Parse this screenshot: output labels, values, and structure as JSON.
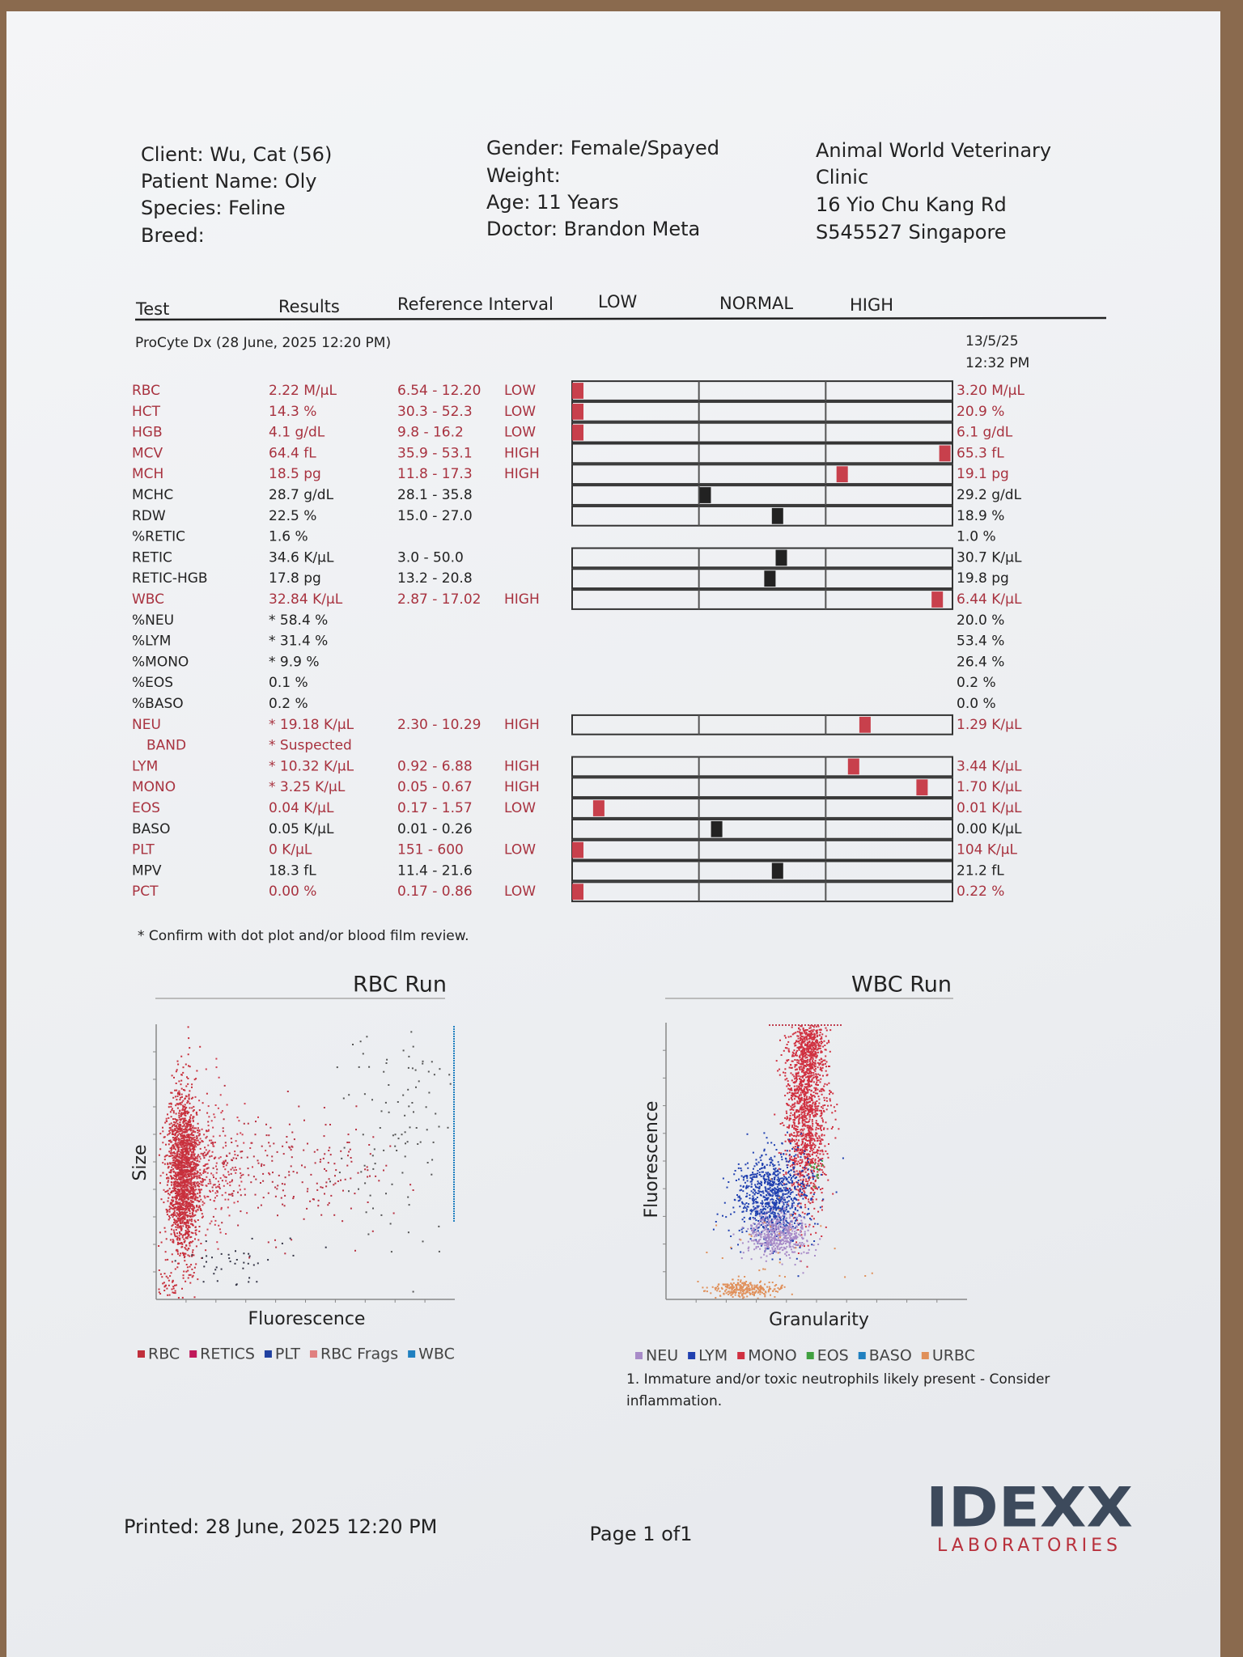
{
  "header": {
    "client": "Client: Wu, Cat (56)",
    "patient": "Patient Name: Oly",
    "species": "Species: Feline",
    "breed": "Breed:",
    "gender": "Gender: Female/Spayed",
    "weight": "Weight:",
    "age": "Age: 11 Years",
    "doctor": "Doctor: Brandon Meta",
    "clinic": [
      "Animal World Veterinary",
      "Clinic",
      "16 Yio Chu Kang Rd",
      "S545527 Singapore"
    ]
  },
  "table": {
    "columns": [
      "Test",
      "Results",
      "Reference Interval",
      "LOW",
      "NORMAL",
      "HIGH"
    ],
    "instrument": "ProCyte Dx (28 June, 2025 12:20 PM)",
    "previous_date": "13/5/25",
    "previous_time": "12:32 PM",
    "rows": [
      {
        "test": "RBC",
        "result": "2.22 M/µL",
        "reference": "6.54 - 12.20",
        "flag": "LOW",
        "previous": "3.20 M/µL",
        "color": "#a8323f"
      },
      {
        "test": "HCT",
        "result": "14.3 %",
        "reference": "30.3 - 52.3",
        "flag": "LOW",
        "previous": "20.9 %",
        "color": "#a8323f"
      },
      {
        "test": "HGB",
        "result": "4.1 g/dL",
        "reference": "9.8 - 16.2",
        "flag": "LOW",
        "previous": "6.1 g/dL",
        "color": "#a8323f"
      },
      {
        "test": "MCV",
        "result": "64.4 fL",
        "reference": "35.9 - 53.1",
        "flag": "HIGH",
        "previous": "65.3 fL",
        "color": "#a8323f"
      },
      {
        "test": "MCH",
        "result": "18.5 pg",
        "reference": "11.8 - 17.3",
        "flag": "HIGH",
        "previous": "19.1 pg",
        "color": "#a8323f"
      },
      {
        "test": "MCHC",
        "result": "28.7 g/dL",
        "reference": "28.1 - 35.8",
        "previous": "29.2 g/dL",
        "color": "#222222"
      },
      {
        "test": "RDW",
        "result": "22.5 %",
        "reference": "15.0 - 27.0",
        "previous": "18.9 %",
        "color": "#222222"
      },
      {
        "test": "%RETIC",
        "result": "1.6 %",
        "previous": "1.0 %",
        "color": "#222222"
      },
      {
        "test": "RETIC",
        "result": "34.6 K/µL",
        "reference": "3.0 - 50.0",
        "previous": "30.7 K/µL",
        "color": "#222222"
      },
      {
        "test": "RETIC-HGB",
        "result": "17.8 pg",
        "reference": "13.2 - 20.8",
        "previous": "19.8 pg",
        "color": "#222222"
      },
      {
        "test": "WBC",
        "result": "32.84 K/µL",
        "reference": "2.87 - 17.02",
        "flag": "HIGH",
        "previous": "6.44 K/µL",
        "color": "#a8323f"
      },
      {
        "test": "%NEU",
        "result": "* 58.4 %",
        "previous": "20.0 %",
        "color": "#222222"
      },
      {
        "test": "%LYM",
        "result": "* 31.4 %",
        "previous": "53.4 %",
        "color": "#222222"
      },
      {
        "test": "%MONO",
        "result": "* 9.9 %",
        "previous": "26.4 %",
        "color": "#222222"
      },
      {
        "test": "%EOS",
        "result": "0.1 %",
        "previous": "0.2 %",
        "color": "#222222"
      },
      {
        "test": "%BASO",
        "result": "0.2 %",
        "previous": "0.0 %",
        "color": "#222222"
      },
      {
        "test": "NEU",
        "result": "* 19.18 K/µL",
        "reference": "2.30 - 10.29",
        "flag": "HIGH",
        "previous": "1.29 K/µL",
        "color": "#a8323f"
      },
      {
        "test": "BAND",
        "result": "* Suspected",
        "color": "#a8323f"
      },
      {
        "test": "LYM",
        "result": "* 10.32 K/µL",
        "reference": "0.92 - 6.88",
        "flag": "HIGH",
        "previous": "3.44 K/µL",
        "color": "#a8323f"
      },
      {
        "test": "MONO",
        "result": "* 3.25 K/µL",
        "reference": "0.05 - 0.67",
        "flag": "HIGH",
        "previous": "1.70 K/µL",
        "color": "#a8323f"
      },
      {
        "test": "EOS",
        "result": "0.04 K/µL",
        "reference": "0.17 - 1.57",
        "flag": "LOW",
        "previous": "0.01 K/µL",
        "color": "#a8323f"
      },
      {
        "test": "BASO",
        "result": "0.05 K/µL",
        "reference": "0.01 - 0.26",
        "previous": "0.00 K/µL",
        "color": "#222222"
      },
      {
        "test": "PLT",
        "result": "0 K/µL",
        "reference": "151 - 600",
        "flag": "LOW",
        "previous": "104 K/µL",
        "color": "#a8323f"
      },
      {
        "test": "MPV",
        "result": "18.3 fL",
        "reference": "11.4 - 21.6",
        "previous": "21.2 fL",
        "color": "#222222"
      },
      {
        "test": "PCT",
        "result": "0.00 %",
        "reference": "0.17 - 0.86",
        "flag": "LOW",
        "previous": "0.22 %",
        "color": "#a8323f"
      }
    ]
  },
  "footnote": "* Confirm with dot plot and/or blood film review.",
  "rbc_run": {
    "title": "RBC Run",
    "x_label": "Fluorescence",
    "y_label": "Size",
    "legend": [
      {
        "name": "RBC",
        "color": "#c0303c"
      },
      {
        "name": "RETICS",
        "color": "#c0185a"
      },
      {
        "name": "PLT",
        "color": "#2040a0"
      },
      {
        "name": "RBC Frags",
        "color": "#e08080"
      },
      {
        "name": "WBC",
        "color": "#2080c0"
      }
    ]
  },
  "wbc_run": {
    "title": "WBC Run",
    "x_label": "Granularity",
    "y_label": "Fluorescence",
    "legend": [
      {
        "name": "NEU",
        "color": "#a88bc8"
      },
      {
        "name": "LYM",
        "color": "#2040b0"
      },
      {
        "name": "MONO",
        "color": "#d03040"
      },
      {
        "name": "EOS",
        "color": "#40a040"
      },
      {
        "name": "BASO",
        "color": "#2080c0"
      },
      {
        "name": "URBC",
        "color": "#e0905a"
      }
    ],
    "note": "1. Immature and/or toxic neutrophils likely present - Consider inflammation."
  },
  "footer": {
    "printed": "Printed: 28 June, 2025 12:20 PM",
    "page": "Page 1 of1",
    "logo": "IDEXX",
    "logo_sub": "LABORATORIES"
  }
}
